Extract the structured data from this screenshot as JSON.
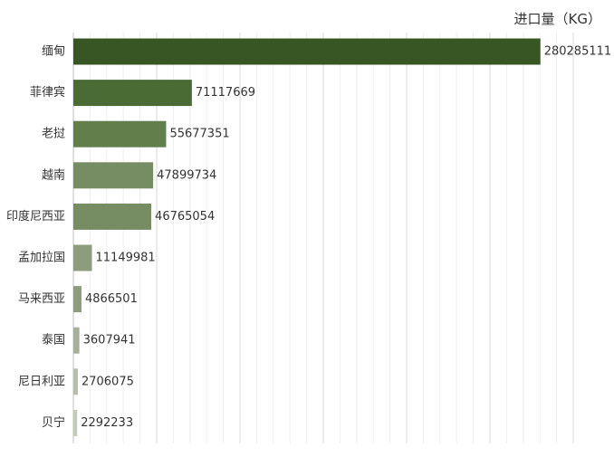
{
  "chart_data": {
    "type": "bar",
    "orientation": "horizontal",
    "unit_label": "进口量（KG）",
    "categories": [
      "缅甸",
      "菲律宾",
      "老挝",
      "越南",
      "印度尼西亚",
      "孟加拉国",
      "马来西亚",
      "泰国",
      "尼日利亚",
      "贝宁"
    ],
    "values": [
      280285111,
      71117669,
      55677351,
      47899734,
      46765054,
      11149981,
      4866501,
      3607941,
      2706075,
      2292233
    ],
    "bar_colors": [
      "#375623",
      "#4a6b33",
      "#627f4b",
      "#768c63",
      "#768c63",
      "#8c9c7d",
      "#8c9c7d",
      "#a4b097",
      "#b5bfaa",
      "#c3cbb9"
    ],
    "xlim": [
      0,
      300000000
    ],
    "grid": true,
    "legend": "none"
  }
}
